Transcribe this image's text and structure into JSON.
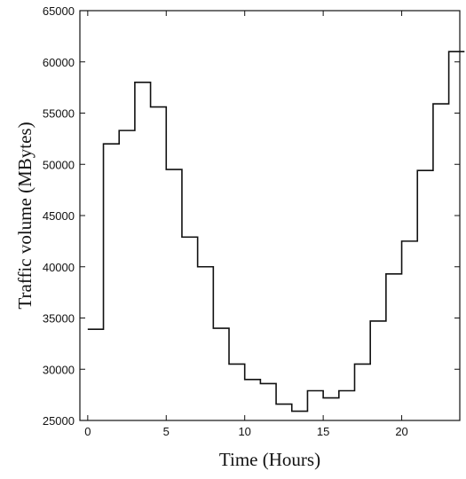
{
  "chart_data": {
    "type": "line",
    "style": "step",
    "xlabel": "Time (Hours)",
    "ylabel": "Traffic volume (MBytes)",
    "xlim": [
      -0.5,
      23.7
    ],
    "ylim": [
      25000,
      65000
    ],
    "x_ticks": [
      0,
      5,
      10,
      15,
      20
    ],
    "y_ticks": [
      25000,
      30000,
      35000,
      40000,
      45000,
      50000,
      55000,
      60000,
      65000
    ],
    "grid": false,
    "series": [
      {
        "x": [
          0,
          1,
          2,
          3,
          4,
          5,
          6,
          7,
          8,
          9,
          10,
          11,
          12,
          13,
          14,
          15,
          16,
          17,
          18,
          19,
          20,
          21,
          22,
          23
        ],
        "values": [
          33900,
          52000,
          53300,
          58000,
          55600,
          49500,
          42900,
          40000,
          34000,
          30500,
          29000,
          28600,
          26600,
          25900,
          27900,
          27200,
          27900,
          30500,
          34700,
          39300,
          42500,
          49400,
          55900,
          61000
        ]
      }
    ]
  }
}
